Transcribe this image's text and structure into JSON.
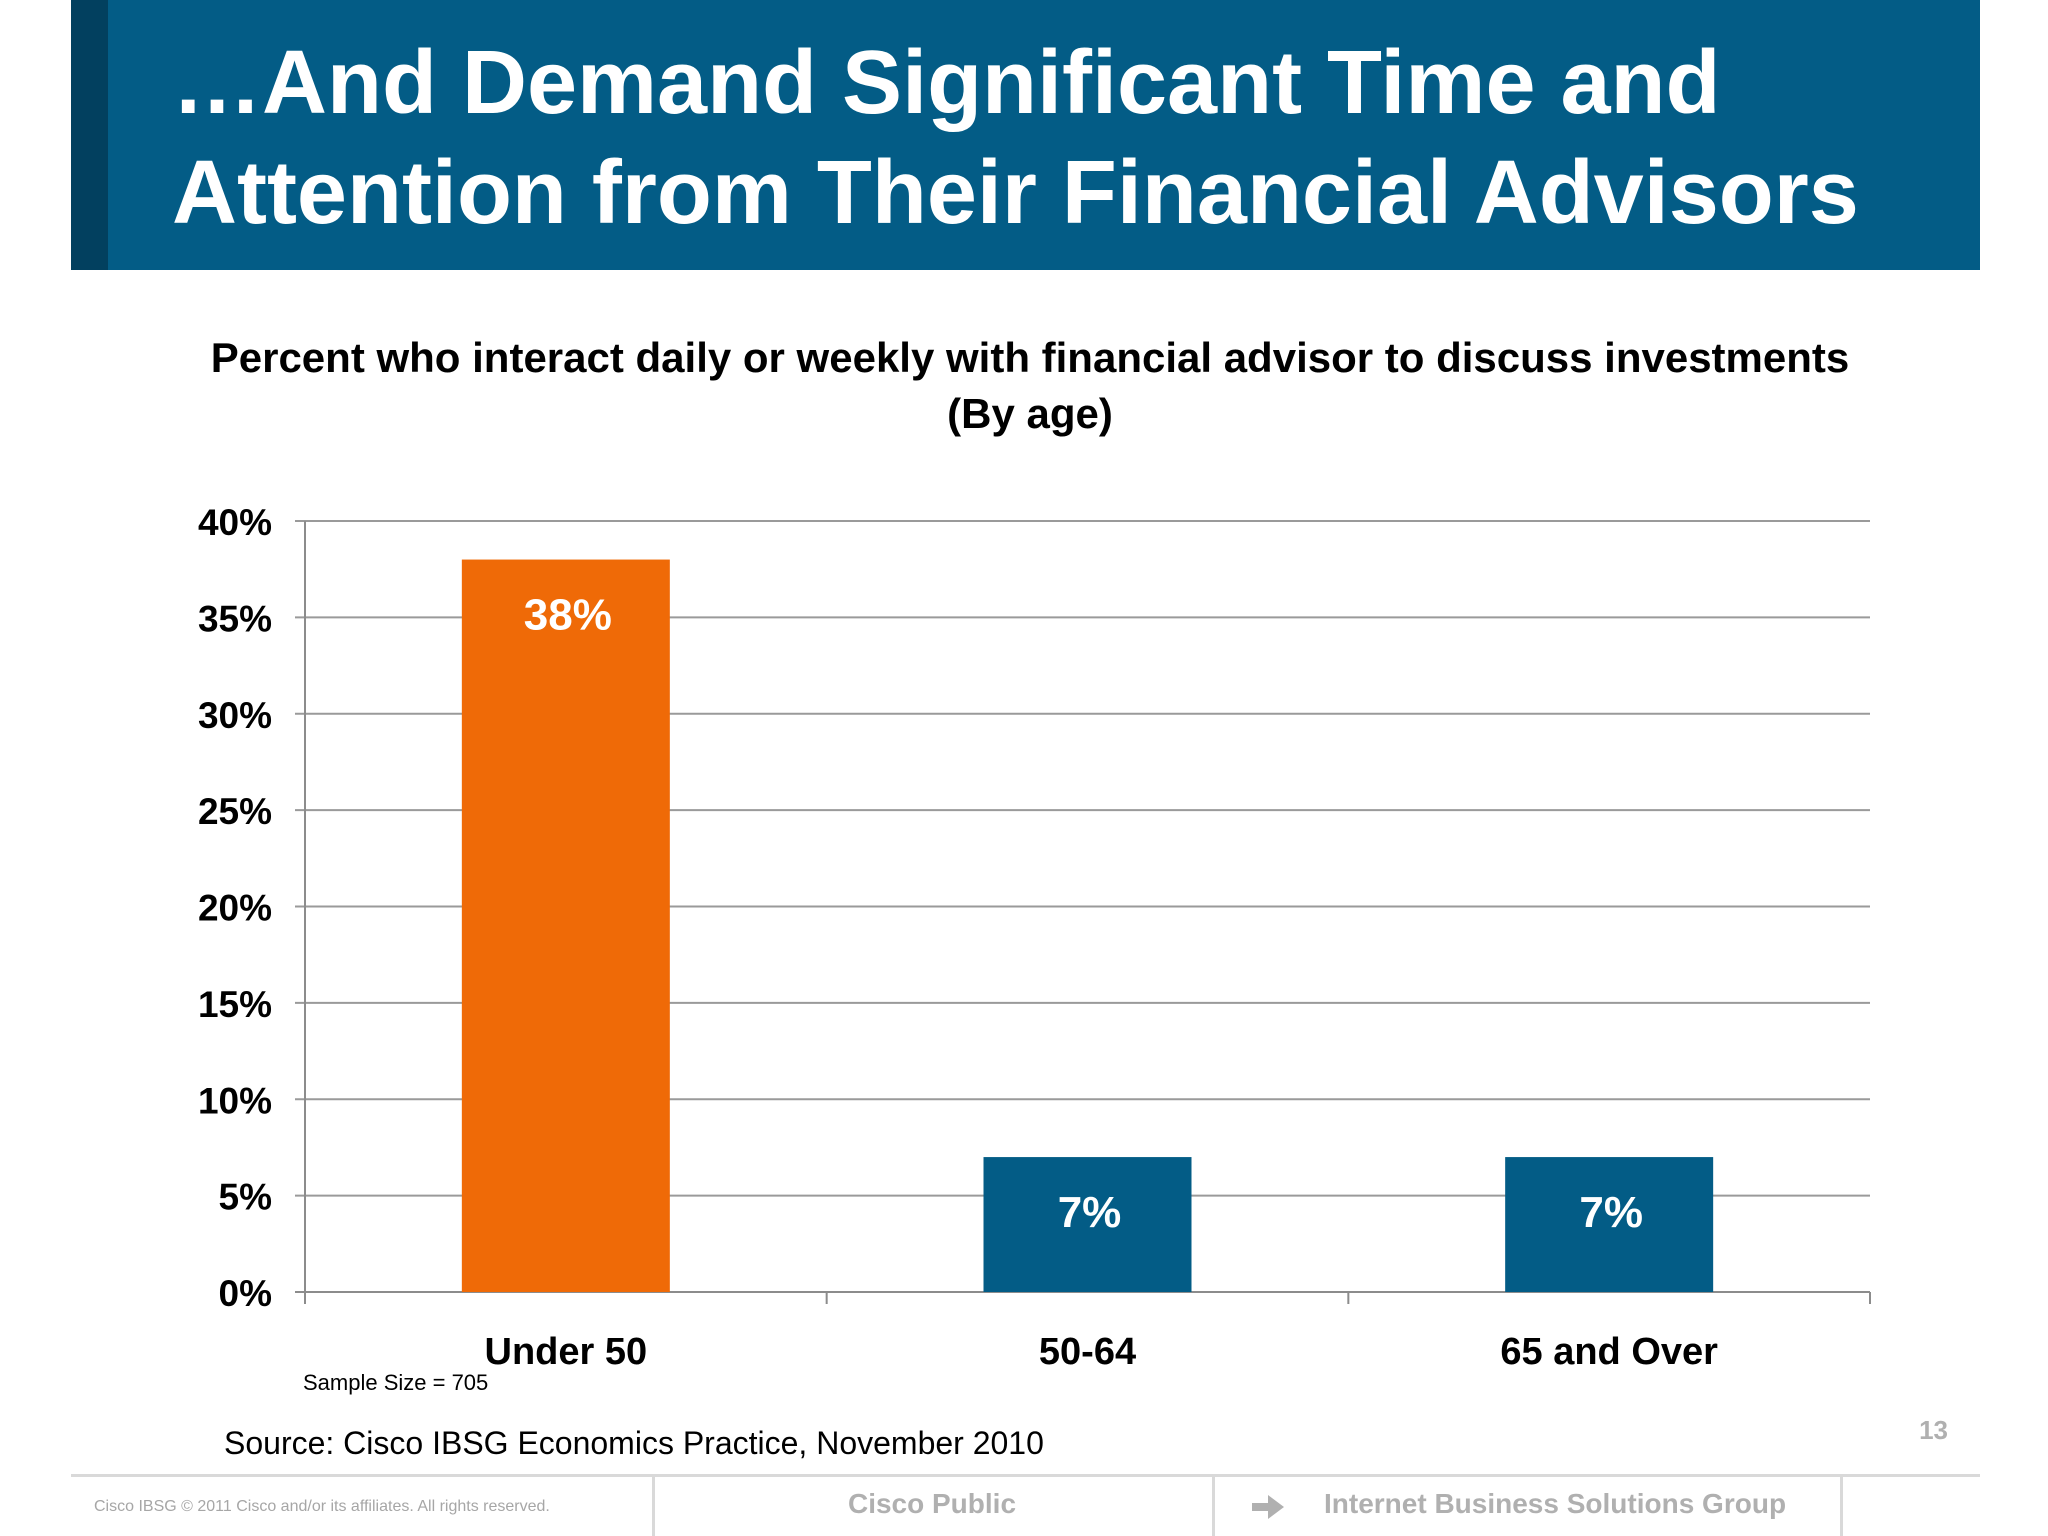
{
  "slide": {
    "title_line1": "…And Demand Significant Time and",
    "title_line2": "Attention from Their Financial Advisors",
    "sample_size": "Sample Size = 705",
    "source": "Source: Cisco IBSG Economics Practice, November 2010",
    "page_number": "13"
  },
  "footer": {
    "copyright": "Cisco IBSG © 2011 Cisco and/or its affiliates. All rights reserved.",
    "classification": "Cisco Public",
    "group": "Internet Business Solutions Group"
  },
  "colors": {
    "banner": "#035c86",
    "banner_accent": "#02405f",
    "highlight_bar": "#ef6a07",
    "bar": "#035c86"
  },
  "icons": {
    "footer_arrow": "arrow-right-icon"
  },
  "chart_data": {
    "type": "bar",
    "title_line1": "Percent who interact daily or weekly with financial advisor to discuss investments",
    "title_line2": "(By age)",
    "categories": [
      "Under 50",
      "50-64",
      "65 and Over"
    ],
    "values": [
      38,
      7,
      7
    ],
    "value_labels": [
      "38%",
      "7%",
      "7%"
    ],
    "bar_colors": [
      "#ef6a07",
      "#035c86",
      "#035c86"
    ],
    "ylim": [
      0,
      40
    ],
    "yticks": [
      0,
      5,
      10,
      15,
      20,
      25,
      30,
      35,
      40
    ],
    "ytick_labels": [
      "0%",
      "5%",
      "10%",
      "15%",
      "20%",
      "25%",
      "30%",
      "35%",
      "40%"
    ],
    "grid": true,
    "legend": "none"
  }
}
